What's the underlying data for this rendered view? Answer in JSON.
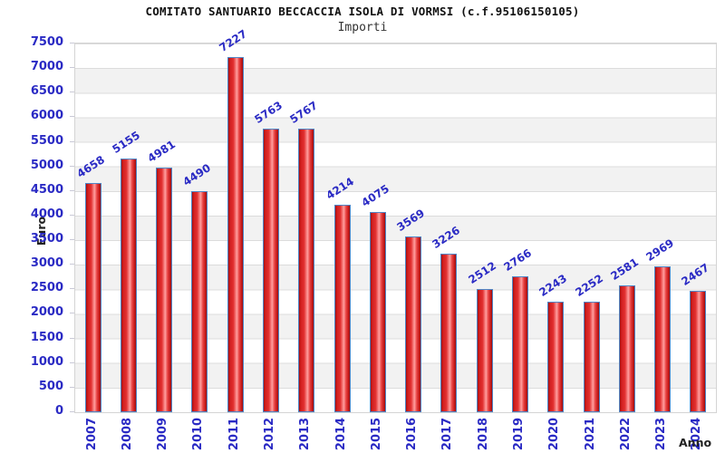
{
  "chart_data": {
    "type": "bar",
    "title": "COMITATO SANTUARIO BECCACCIA ISOLA DI VORMSI (c.f.95106150105)",
    "subtitle": "Importi",
    "xlabel": "Anno",
    "ylabel": "Euro",
    "categories": [
      "2007",
      "2008",
      "2009",
      "2010",
      "2011",
      "2012",
      "2013",
      "2014",
      "2015",
      "2016",
      "2017",
      "2018",
      "2019",
      "2020",
      "2021",
      "2022",
      "2023",
      "2024"
    ],
    "values": [
      4658,
      5155,
      4981,
      4490,
      7227,
      5763,
      5767,
      4214,
      4075,
      3569,
      3226,
      2512,
      2766,
      2243,
      2252,
      2581,
      2969,
      2467
    ],
    "ylim": [
      0,
      7500
    ],
    "ytick_step": 500,
    "legend_position": "none",
    "grid": "alternating horizontal bands every 500 with light gridlines",
    "value_labels": "rotated above each bar",
    "colors": {
      "bar_border": "#4f86c6",
      "bar_fill_dark": "#a50f0f",
      "bar_fill_light": "#ff9e9e",
      "tick_text": "#2a2ac4",
      "axis_title_text": "#222222",
      "band_gray": "#f2f2f2",
      "band_white": "#ffffff",
      "grid_line": "#dcdcdc",
      "background": "#ffffff"
    }
  }
}
